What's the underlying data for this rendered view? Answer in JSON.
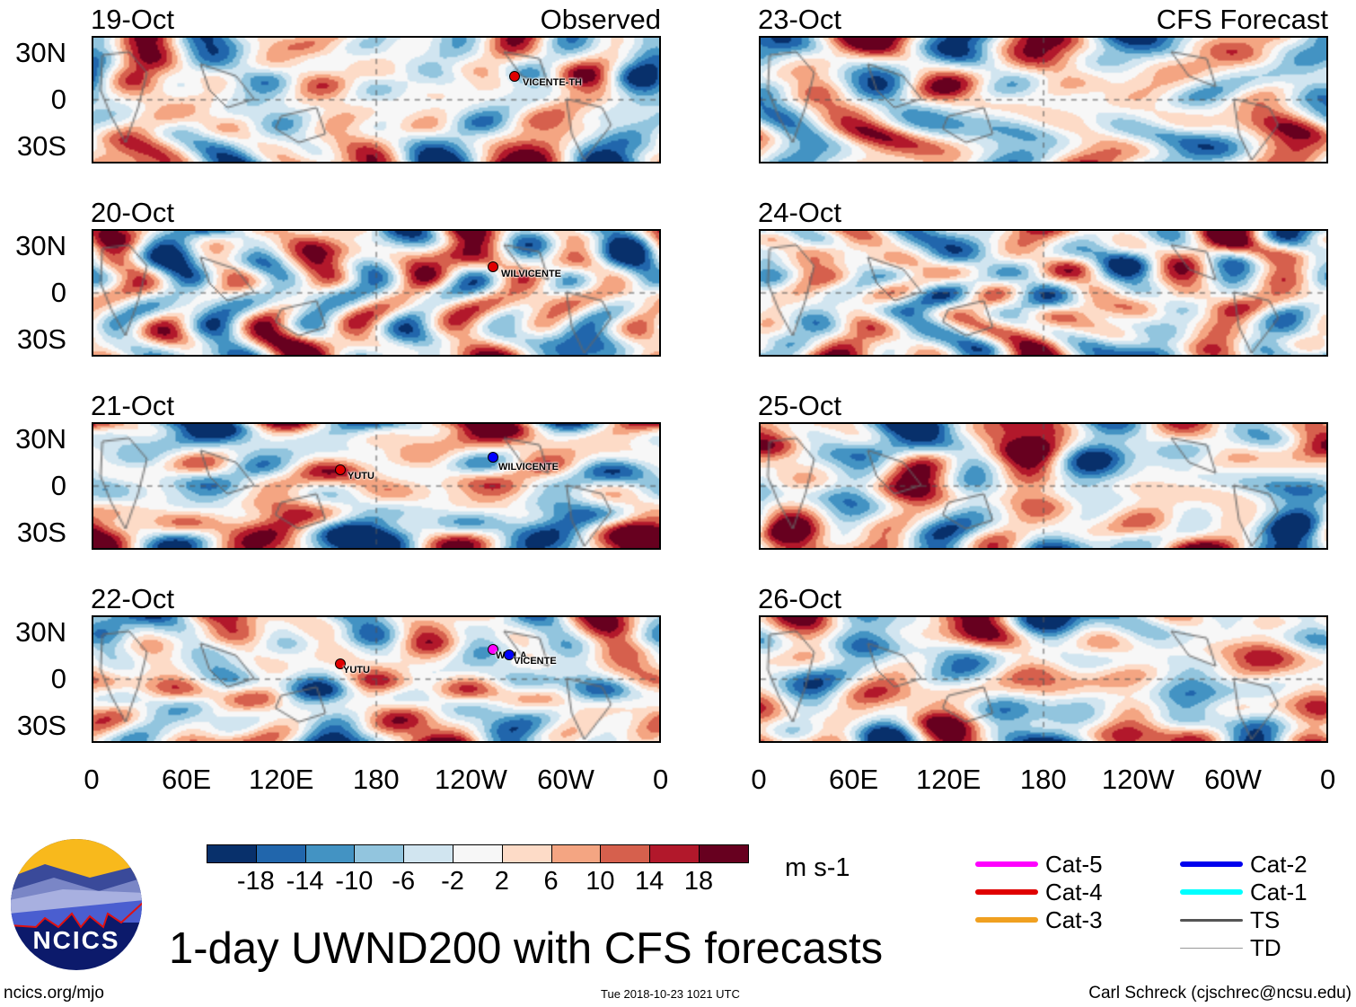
{
  "headers": {
    "observed": "Observed",
    "forecast": "CFS Forecast"
  },
  "observed_panels": [
    {
      "date": "19-Oct",
      "storms": [
        {
          "name": "VICENTE-TH",
          "color": "#e00000"
        }
      ]
    },
    {
      "date": "20-Oct",
      "storms": [
        {
          "name": "WILVICENTE",
          "color": "#e00000"
        }
      ]
    },
    {
      "date": "21-Oct",
      "storms": [
        {
          "name": "YUTU",
          "color": "#e00000"
        },
        {
          "name": "WILVICENTE",
          "color": "#0000ff"
        }
      ]
    },
    {
      "date": "22-Oct",
      "storms": [
        {
          "name": "YUTU",
          "color": "#e00000"
        },
        {
          "name": "WILLA",
          "color": "#ff00ff"
        },
        {
          "name": "VICENTE",
          "color": "#0000ff"
        }
      ]
    }
  ],
  "forecast_panels": [
    {
      "date": "23-Oct"
    },
    {
      "date": "24-Oct"
    },
    {
      "date": "25-Oct"
    },
    {
      "date": "26-Oct"
    }
  ],
  "lat_labels": [
    "30N",
    "0",
    "30S"
  ],
  "lon_labels": [
    "0",
    "60E",
    "120E",
    "180",
    "120W",
    "60W",
    "0"
  ],
  "colorbar": {
    "colors": [
      "#08306b",
      "#2166ac",
      "#4393c3",
      "#92c5de",
      "#d1e5f0",
      "#f7f7f7",
      "#fddbc7",
      "#f4a582",
      "#d6604d",
      "#b2182b",
      "#67001f"
    ],
    "labels": [
      "-18",
      "-14",
      "-10",
      "-6",
      "-2",
      "2",
      "6",
      "10",
      "14",
      "18"
    ],
    "units": "m s-1"
  },
  "legend": [
    {
      "label": "Cat-5",
      "color": "#ff00ff"
    },
    {
      "label": "Cat-4",
      "color": "#e00000"
    },
    {
      "label": "Cat-3",
      "color": "#f0a020"
    },
    {
      "label": "Cat-2",
      "color": "#0000ee"
    },
    {
      "label": "Cat-1",
      "color": "#00ffff"
    },
    {
      "label": "TS",
      "color": "#555555"
    },
    {
      "label": "TD",
      "color": "#999999"
    }
  ],
  "title": "1-day UWND200 with CFS forecasts",
  "logo_text": "NCICS",
  "footer": {
    "left": "ncics.org/mjo",
    "center": "Tue 2018-10-23 1021 UTC",
    "right": "Carl Schreck (cjschrec@ncsu.edu)"
  }
}
